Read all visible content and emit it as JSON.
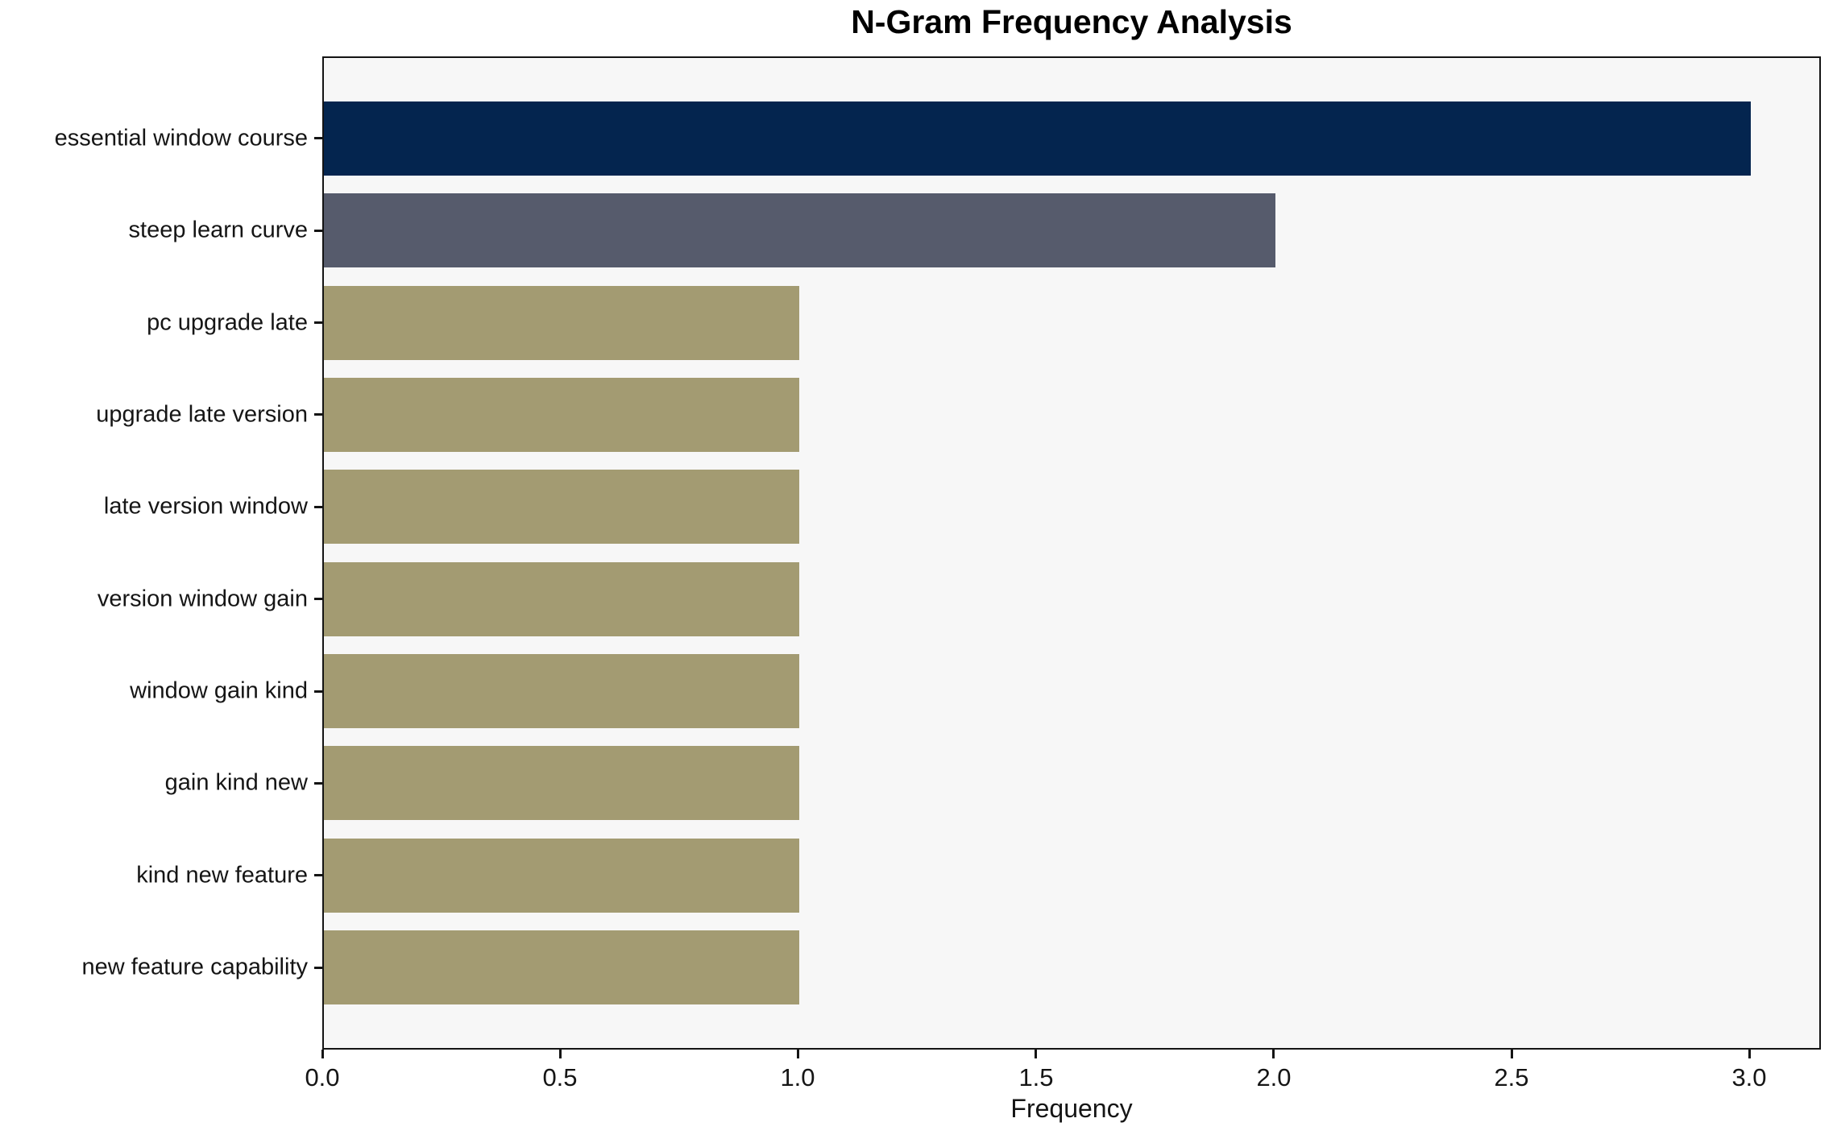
{
  "chart_data": {
    "type": "bar",
    "orientation": "horizontal",
    "title": "N-Gram Frequency Analysis",
    "xlabel": "Frequency",
    "ylabel": "",
    "categories": [
      "essential window course",
      "steep learn curve",
      "pc upgrade late",
      "upgrade late version",
      "late version window",
      "version window gain",
      "window gain kind",
      "gain kind new",
      "kind new feature",
      "new feature capability"
    ],
    "values": [
      3,
      2,
      1,
      1,
      1,
      1,
      1,
      1,
      1,
      1
    ],
    "bar_colors": [
      "#04254f",
      "#565b6c",
      "#a39b72",
      "#a39b72",
      "#a39b72",
      "#a39b72",
      "#a39b72",
      "#a39b72",
      "#a39b72",
      "#a39b72"
    ],
    "xlim": [
      0,
      3.15
    ],
    "xticks": [
      0.0,
      0.5,
      1.0,
      1.5,
      2.0,
      2.5,
      3.0
    ],
    "xtick_labels": [
      "0.0",
      "0.5",
      "1.0",
      "1.5",
      "2.0",
      "2.5",
      "3.0"
    ],
    "grid": false,
    "legend": "none",
    "plot_background": "#f7f7f7",
    "figure_background": "#ffffff",
    "spine_color": "#141414"
  }
}
